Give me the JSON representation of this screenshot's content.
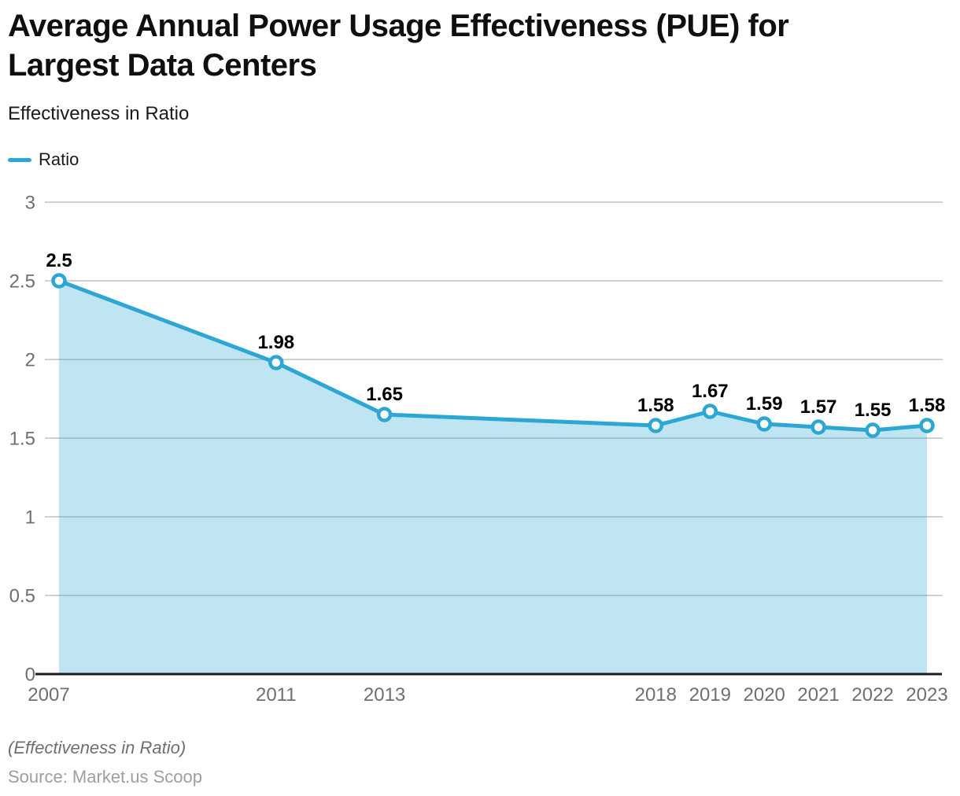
{
  "header": {
    "title": "Average Annual Power Usage Effectiveness (PUE) for Largest Data Centers",
    "subtitle": "Effectiveness in Ratio"
  },
  "legend": {
    "label": "Ratio"
  },
  "chart_data": {
    "type": "area",
    "title": "Average Annual Power Usage Effectiveness (PUE) for Largest Data Centers",
    "xlabel": "",
    "ylabel": "Effectiveness in Ratio",
    "x": [
      2007,
      2011,
      2013,
      2018,
      2019,
      2020,
      2021,
      2022,
      2023
    ],
    "series": [
      {
        "name": "Ratio",
        "values": [
          2.5,
          1.98,
          1.65,
          1.58,
          1.67,
          1.59,
          1.57,
          1.55,
          1.58
        ]
      }
    ],
    "data_labels": [
      "2.5",
      "1.98",
      "1.65",
      "1.58",
      "1.67",
      "1.59",
      "1.57",
      "1.55",
      "1.58"
    ],
    "x_tick_labels": [
      "2007",
      "2011",
      "2013",
      "2018",
      "2019",
      "2020",
      "2021",
      "2022",
      "2023"
    ],
    "y_ticks": [
      0,
      0.5,
      1,
      1.5,
      2,
      2.5,
      3
    ],
    "y_tick_labels": [
      "0",
      "0.5",
      "1",
      "1.5",
      "2",
      "2.5",
      "3"
    ],
    "ylim": [
      0,
      3
    ],
    "xlim": [
      2007,
      2023
    ],
    "grid": "horizontal",
    "legend_position": "top-left",
    "markers": "open-circle"
  },
  "colors": {
    "line": "#2CA6D3",
    "area_fill": "#2CA6D3",
    "area_opacity": 0.3,
    "marker_fill": "#FFFFFF",
    "grid": "#D0D0D0",
    "axis": "#1A1A1A",
    "tick_text": "#6F6F6F",
    "data_label_text": "#000000"
  },
  "footer": {
    "note": "(Effectiveness in Ratio)",
    "source": "Source: Market.us Scoop"
  }
}
